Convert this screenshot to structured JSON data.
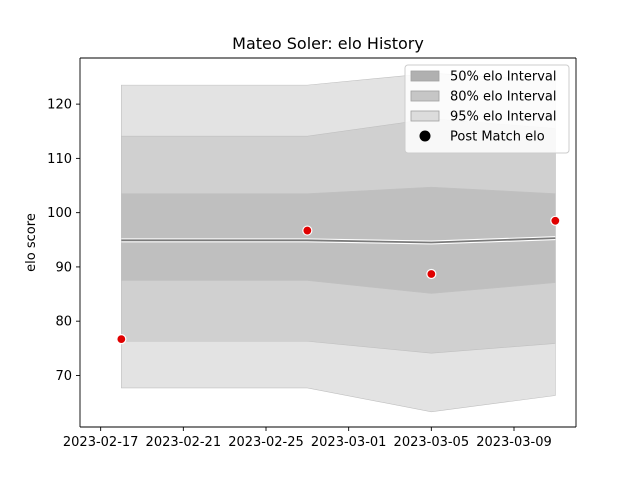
{
  "chart_data": {
    "type": "area",
    "title": "Mateo Soler: elo History",
    "xlabel": "",
    "ylabel": "elo score",
    "xlim": [
      "2023-02-16",
      "2023-03-12"
    ],
    "ylim": [
      60.5,
      128.5
    ],
    "x_ticks": [
      "2023-02-17",
      "2023-02-21",
      "2023-02-25",
      "2023-03-01",
      "2023-03-05",
      "2023-03-09"
    ],
    "y_ticks": [
      70,
      80,
      90,
      100,
      110,
      120
    ],
    "x": [
      "2023-02-18",
      "2023-02-27",
      "2023-03-05",
      "2023-03-11"
    ],
    "mean": [
      94.9,
      94.9,
      94.5,
      95.3
    ],
    "bands": [
      {
        "name": "95% elo Interval",
        "lower": [
          67.7,
          67.7,
          63.3,
          66.3
        ],
        "upper": [
          123.5,
          123.5,
          125.7,
          124.3
        ],
        "color": "#e3e3e3"
      },
      {
        "name": "80% elo Interval",
        "lower": [
          76.3,
          76.3,
          74.1,
          75.9
        ],
        "upper": [
          114.1,
          114.1,
          117.3,
          115.5
        ],
        "color": "#d0d0d0"
      },
      {
        "name": "50% elo Interval",
        "lower": [
          87.5,
          87.5,
          85.1,
          87.1
        ],
        "upper": [
          103.5,
          103.5,
          104.7,
          103.5
        ],
        "color": "#bfbfbf"
      }
    ],
    "points": {
      "name": "Post Match elo",
      "x": [
        "2023-02-18",
        "2023-02-27",
        "2023-03-05",
        "2023-03-11"
      ],
      "y": [
        76.7,
        96.7,
        88.7,
        98.5
      ],
      "color": "#e00000"
    },
    "legend": {
      "placement": "top-right",
      "entries": [
        {
          "label": "50% elo Interval",
          "kind": "patch",
          "color": "#b0b0b0"
        },
        {
          "label": "80% elo Interval",
          "kind": "patch",
          "color": "#c6c6c6"
        },
        {
          "label": "95% elo Interval",
          "kind": "patch",
          "color": "#dcdcdc"
        },
        {
          "label": "Post Match elo",
          "kind": "marker",
          "color": "#000000"
        }
      ]
    },
    "grid": false
  }
}
